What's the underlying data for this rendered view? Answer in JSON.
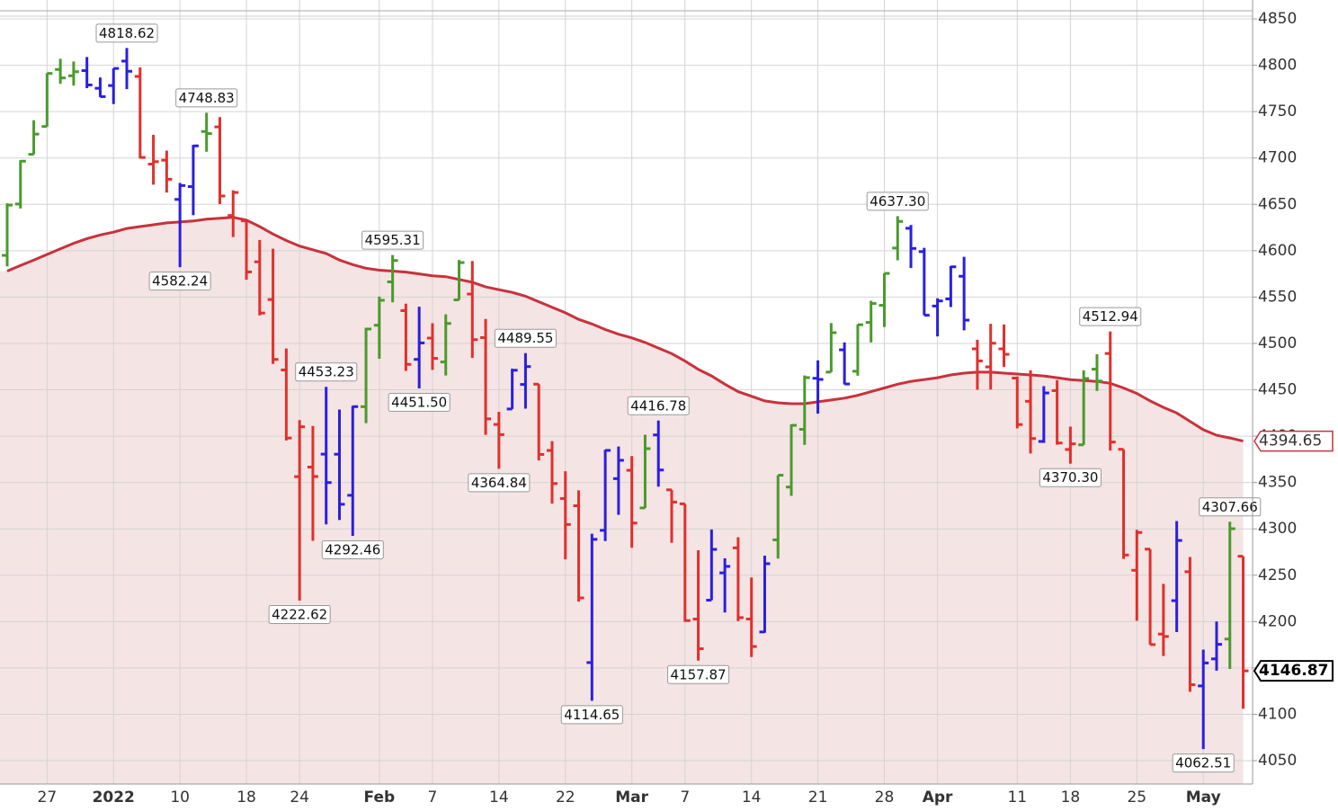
{
  "chart_data": {
    "type": "ohlc",
    "categories": [
      null,
      null,
      null,
      "27",
      null,
      null,
      null,
      null,
      "2022",
      null,
      null,
      null,
      null,
      "10",
      null,
      null,
      null,
      null,
      "18",
      null,
      null,
      null,
      "24",
      null,
      null,
      null,
      null,
      null,
      "Feb",
      null,
      null,
      null,
      "7",
      null,
      null,
      null,
      null,
      "14",
      null,
      null,
      null,
      null,
      "22",
      null,
      null,
      null,
      null,
      "Mar",
      null,
      null,
      null,
      "7",
      null,
      null,
      null,
      null,
      "14",
      null,
      null,
      null,
      null,
      "21",
      null,
      null,
      null,
      null,
      "28",
      null,
      null,
      null,
      "Apr",
      null,
      null,
      null,
      null,
      null,
      "11",
      null,
      null,
      null,
      "18",
      null,
      null,
      null,
      null,
      "25",
      null,
      null,
      null,
      null,
      "May",
      null,
      null,
      null
    ],
    "open": [
      4594.96,
      4650.36,
      4703.96,
      4733.99,
      4795.49,
      4788.64,
      4794.23,
      4775.21,
      4778.14,
      4804.51,
      4787.99,
      4693.39,
      4697.66,
      4655.34,
      4669.14,
      4728.59,
      4733.56,
      4637.99,
      4632.24,
      4588.03,
      4547.35,
      4471.38,
      4356.32,
      4366.64,
      4380.58,
      4380.5,
      4336.19,
      4431.79,
      4519.57,
      4566.39,
      4535.41,
      4482.79,
      4505.75,
      4480.02,
      4547.0,
      4553.24,
      4506.27,
      4412.61,
      4429.28,
      4455.75,
      4456.06,
      4384.57,
      4332.74,
      4324.93,
      4155.77,
      4298.38,
      4354.17,
      4363.14,
      4322.56,
      4401.31,
      4342.12,
      4327.01,
      4202.66,
      4223.1,
      4252.55,
      4279.5,
      4202.75,
      4188.82,
      4288.14,
      4345.11,
      4407.34,
      4462.4,
      4469.1,
      4493.1,
      4469.98,
      4522.66,
      4541.09,
      4602.86,
      4624.2,
      4599.02,
      4540.32,
      4547.97,
      4572.45,
      4494.17,
      4474.65,
      4494.15,
      4462.64,
      4437.59,
      4394.3,
      4449.12,
      4385.63,
      4390.63,
      4472.26,
      4489.17,
      4385.83,
      4255.34,
      4278.14,
      4186.52,
      4222.58,
      4253.75,
      4130.61,
      4159.78,
      4181.18,
      4270.43
    ],
    "high": [
      4651.14,
      4697.67,
      4740.74,
      4791.49,
      4807.02,
      4804.06,
      4808.93,
      4786.83,
      4796.64,
      4818.62,
      4797.7,
      4725.01,
      4707.95,
      4673.02,
      4714.13,
      4748.83,
      4744.13,
      4665.13,
      4632.24,
      4611.55,
      4602.11,
      4494.52,
      4417.35,
      4411.01,
      4453.23,
      4428.74,
      4432.72,
      4516.89,
      4550.49,
      4595.31,
      4542.88,
      4539.66,
      4521.86,
      4531.32,
      4590.03,
      4588.92,
      4526.33,
      4426.22,
      4472.77,
      4489.55,
      4456.06,
      4394.6,
      4362.12,
      4341.51,
      4294.73,
      4385.34,
      4388.84,
      4378.45,
      4401.48,
      4416.78,
      4342.12,
      4327.01,
      4276.94,
      4299.4,
      4268.28,
      4291.01,
      4247.57,
      4271.05,
      4357.86,
      4412.67,
      4465.4,
      4481.75,
      4522.0,
      4501.07,
      4520.58,
      4546.03,
      4575.65,
      4637.3,
      4627.77,
      4603.07,
      4548.7,
      4583.5,
      4593.45,
      4503.94,
      4521.16,
      4520.41,
      4464.35,
      4471.0,
      4453.92,
      4460.46,
      4410.31,
      4471.03,
      4488.29,
      4512.94,
      4385.83,
      4299.02,
      4278.14,
      4240.71,
      4308.45,
      4269.68,
      4169.81,
      4200.1,
      4307.66,
      4270.43
    ],
    "low": [
      4583.16,
      4645.53,
      4703.96,
      4733.99,
      4780.04,
      4778.08,
      4775.33,
      4765.75,
      4758.17,
      4774.27,
      4699.44,
      4671.26,
      4662.74,
      4582.24,
      4638.27,
      4706.71,
      4650.29,
      4614.75,
      4568.7,
      4530.2,
      4477.95,
      4395.34,
      4222.62,
      4287.11,
      4304.8,
      4309.5,
      4292.46,
      4414.02,
      4483.53,
      4544.32,
      4470.39,
      4451.5,
      4471.47,
      4465.4,
      4547.0,
      4484.31,
      4401.41,
      4364.84,
      4429.28,
      4429.68,
      4373.81,
      4327.22,
      4267.11,
      4221.51,
      4114.65,
      4286.83,
      4315.12,
      4279.54,
      4322.56,
      4345.56,
      4284.98,
      4199.85,
      4157.87,
      4223.1,
      4209.8,
      4200.49,
      4161.72,
      4187.9,
      4267.92,
      4335.65,
      4390.57,
      4424.3,
      4469.1,
      4455.81,
      4465.17,
      4501.07,
      4517.69,
      4589.66,
      4581.32,
      4530.41,
      4507.57,
      4539.21,
      4514.17,
      4450.04,
      4450.3,
      4474.6,
      4408.38,
      4381.34,
      4392.7,
      4390.77,
      4370.3,
      4390.63,
      4448.76,
      4384.47,
      4267.62,
      4200.82,
      4175.04,
      4162.9,
      4188.63,
      4124.28,
      4062.51,
      4147.08,
      4148.91,
      4106.01
    ],
    "close": [
      4649.23,
      4696.56,
      4725.79,
      4791.19,
      4786.35,
      4793.06,
      4778.73,
      4766.18,
      4796.56,
      4793.54,
      4700.58,
      4696.05,
      4677.03,
      4670.29,
      4713.07,
      4726.35,
      4659.03,
      4662.85,
      4577.11,
      4532.76,
      4482.73,
      4397.94,
      4410.13,
      4356.45,
      4349.93,
      4326.51,
      4431.85,
      4515.55,
      4546.54,
      4589.38,
      4477.44,
      4500.53,
      4483.87,
      4521.54,
      4587.18,
      4504.08,
      4418.64,
      4401.67,
      4471.07,
      4475.01,
      4380.26,
      4348.87,
      4304.76,
      4225.5,
      4288.7,
      4384.65,
      4373.94,
      4306.26,
      4386.54,
      4363.49,
      4328.87,
      4201.09,
      4170.7,
      4277.88,
      4259.52,
      4204.31,
      4173.11,
      4262.45,
      4357.86,
      4411.67,
      4463.12,
      4461.18,
      4511.61,
      4456.24,
      4520.16,
      4543.06,
      4575.52,
      4631.6,
      4602.45,
      4530.41,
      4545.86,
      4582.64,
      4525.12,
      4481.15,
      4500.21,
      4488.28,
      4412.53,
      4397.45,
      4446.59,
      4392.59,
      4391.69,
      4462.21,
      4459.45,
      4393.66,
      4271.78,
      4296.12,
      4175.2,
      4183.96,
      4287.5,
      4131.93,
      4155.38,
      4175.48,
      4300.17,
      4146.87
    ],
    "high_labels": [
      null,
      null,
      null,
      null,
      null,
      null,
      null,
      null,
      null,
      "4818.62",
      null,
      null,
      null,
      null,
      null,
      "4748.83",
      null,
      null,
      null,
      null,
      null,
      null,
      null,
      null,
      "4453.23",
      null,
      null,
      null,
      null,
      "4595.31",
      null,
      null,
      null,
      null,
      null,
      null,
      null,
      null,
      null,
      "4489.55",
      null,
      null,
      null,
      null,
      null,
      null,
      null,
      null,
      null,
      "4416.78",
      null,
      null,
      null,
      null,
      null,
      null,
      null,
      null,
      null,
      null,
      null,
      null,
      null,
      null,
      null,
      null,
      null,
      "4637.30",
      null,
      null,
      null,
      null,
      null,
      null,
      null,
      null,
      null,
      null,
      null,
      null,
      null,
      null,
      null,
      "4512.94",
      null,
      null,
      null,
      null,
      null,
      null,
      null,
      null,
      "4307.66",
      null
    ],
    "low_labels": [
      null,
      null,
      null,
      null,
      null,
      null,
      null,
      null,
      null,
      null,
      null,
      null,
      null,
      "4582.24",
      null,
      null,
      null,
      null,
      null,
      null,
      null,
      null,
      "4222.62",
      null,
      null,
      null,
      "4292.46",
      null,
      null,
      null,
      null,
      "4451.50",
      null,
      null,
      null,
      null,
      null,
      "4364.84",
      null,
      null,
      null,
      null,
      null,
      null,
      "4114.65",
      null,
      null,
      null,
      null,
      null,
      null,
      null,
      "4157.87",
      null,
      null,
      null,
      null,
      null,
      null,
      null,
      null,
      null,
      null,
      null,
      null,
      null,
      null,
      null,
      null,
      null,
      null,
      null,
      null,
      null,
      null,
      null,
      null,
      null,
      null,
      null,
      "4370.30",
      null,
      null,
      null,
      null,
      null,
      null,
      null,
      null,
      null,
      "4062.51",
      null,
      null,
      null
    ],
    "bar_colors": [
      "#4a9a2c",
      "#4a9a2c",
      "#4a9a2c",
      "#4a9a2c",
      "#4a9a2c",
      "#4a9a2c",
      "#2a1fe0",
      "#2a1fe0",
      "#2a1fe0",
      "#2a1fe0",
      "#e0302c",
      "#e0302c",
      "#e0302c",
      "#2a1fe0",
      "#2a1fe0",
      "#4a9a2c",
      "#e0302c",
      "#e0302c",
      "#e0302c",
      "#e0302c",
      "#e0302c",
      "#e0302c",
      "#e0302c",
      "#e0302c",
      "#2a1fe0",
      "#2a1fe0",
      "#2a1fe0",
      "#4a9a2c",
      "#4a9a2c",
      "#4a9a2c",
      "#e0302c",
      "#2a1fe0",
      "#e0302c",
      "#4a9a2c",
      "#4a9a2c",
      "#e0302c",
      "#e0302c",
      "#e0302c",
      "#2a1fe0",
      "#2a1fe0",
      "#e0302c",
      "#e0302c",
      "#e0302c",
      "#e0302c",
      "#2a1fe0",
      "#2a1fe0",
      "#2a1fe0",
      "#e0302c",
      "#4a9a2c",
      "#2a1fe0",
      "#e0302c",
      "#e0302c",
      "#e0302c",
      "#2a1fe0",
      "#2a1fe0",
      "#e0302c",
      "#e0302c",
      "#2a1fe0",
      "#4a9a2c",
      "#4a9a2c",
      "#4a9a2c",
      "#2a1fe0",
      "#4a9a2c",
      "#2a1fe0",
      "#4a9a2c",
      "#4a9a2c",
      "#4a9a2c",
      "#4a9a2c",
      "#2a1fe0",
      "#2a1fe0",
      "#2a1fe0",
      "#2a1fe0",
      "#2a1fe0",
      "#e0302c",
      "#e0302c",
      "#e0302c",
      "#e0302c",
      "#e0302c",
      "#2a1fe0",
      "#e0302c",
      "#e0302c",
      "#4a9a2c",
      "#4a9a2c",
      "#e0302c",
      "#e0302c",
      "#e0302c",
      "#e0302c",
      "#e0302c",
      "#2a1fe0",
      "#e0302c",
      "#2a1fe0",
      "#2a1fe0",
      "#4a9a2c",
      "#e0302c"
    ],
    "moving_average": {
      "color": "#c8323c",
      "fill": "#f5e4e4",
      "values": [
        4578,
        4584,
        4590,
        4596,
        4602,
        4608,
        4613,
        4617,
        4620,
        4624,
        4626,
        4628,
        4630,
        4631,
        4632,
        4634,
        4635,
        4636,
        4633,
        4626,
        4618,
        4611,
        4605,
        4601,
        4597,
        4590,
        4585,
        4581,
        4579,
        4578,
        4577,
        4575,
        4573,
        4572,
        4569,
        4566,
        4561,
        4558,
        4555,
        4551,
        4545,
        4539,
        4533,
        4526,
        4521,
        4515,
        4510,
        4506,
        4501,
        4495,
        4489,
        4481,
        4472,
        4465,
        4456,
        4448,
        4443,
        4438,
        4436,
        4435,
        4435,
        4437,
        4439,
        4441,
        4444,
        4448,
        4452,
        4456,
        4459,
        4461,
        4463,
        4466,
        4468,
        4469,
        4469,
        4468,
        4467,
        4466,
        4465,
        4463,
        4461,
        4460,
        4459,
        4457,
        4452,
        4446,
        4438,
        4431,
        4425,
        4416,
        4407,
        4401,
        4398,
        4394.65
      ]
    },
    "ylim": [
      4024.8,
      4870.4
    ],
    "yticks": [
      4050,
      4100,
      4150,
      4200,
      4250,
      4300,
      4350,
      4400,
      4450,
      4500,
      4550,
      4600,
      4650,
      4700,
      4750,
      4800,
      4850
    ],
    "grid": true
  }
}
